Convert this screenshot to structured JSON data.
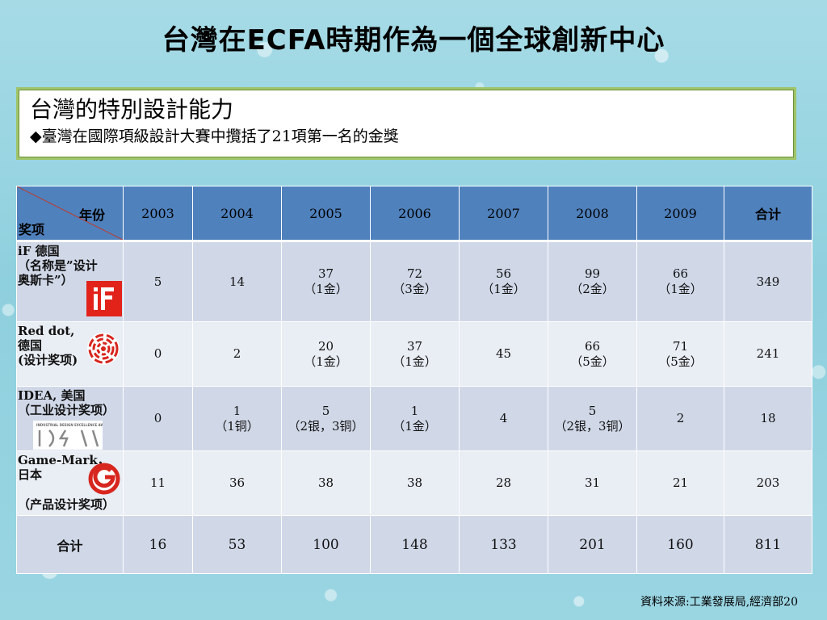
{
  "slide": {
    "title": "台灣在ECFA時期作為一個全球創新中心",
    "heading": "台灣的特別設計能力",
    "bullet": "◆臺灣在國際項級設計大賽中攬括了21項第一名的金獎",
    "footer": "資料來源:工業發展局,經濟部20"
  },
  "table": {
    "corner_year": "年份",
    "corner_award": "奖项",
    "columns": [
      "2003",
      "2004",
      "2005",
      "2006",
      "2007",
      "2008",
      "2009",
      "合计"
    ],
    "rows": [
      {
        "label": "iF 德国\n（名称是”设计\n奥斯卡”）",
        "label_sub": "",
        "logo": "if-logo",
        "cells": [
          [
            "5"
          ],
          [
            "14"
          ],
          [
            "37",
            "（1金）"
          ],
          [
            "72",
            "（3金）"
          ],
          [
            "56",
            "（1金）"
          ],
          [
            "99",
            "（2金）"
          ],
          [
            "66",
            "（1金）"
          ],
          [
            "349"
          ]
        ]
      },
      {
        "label": "Red dot,\n德国\n(设计奖项)",
        "label_sub": "",
        "logo": "red-dot-logo",
        "cells": [
          [
            "0"
          ],
          [
            "2"
          ],
          [
            "20",
            "（1金）"
          ],
          [
            "37",
            "（1金）"
          ],
          [
            "45"
          ],
          [
            "66",
            "（5金）"
          ],
          [
            "71",
            "（5金）"
          ],
          [
            "241"
          ]
        ]
      },
      {
        "label": "IDEA, 美国\n（工业设计奖项）",
        "label_sub": "",
        "logo": "idea-logo",
        "cells": [
          [
            "0"
          ],
          [
            "1",
            "（1铜）"
          ],
          [
            "5",
            "（2银，3铜）"
          ],
          [
            "1",
            "（1金）"
          ],
          [
            "4"
          ],
          [
            "5",
            "（2银，3铜）"
          ],
          [
            "2"
          ],
          [
            "18"
          ]
        ]
      },
      {
        "label": "Game-Mark，\n日本",
        "label_sub": "（产品设计奖项）",
        "logo": "g-mark-logo",
        "cells": [
          [
            "11"
          ],
          [
            "36"
          ],
          [
            "38"
          ],
          [
            "38"
          ],
          [
            "28"
          ],
          [
            "31"
          ],
          [
            "21"
          ],
          [
            "203"
          ]
        ]
      }
    ],
    "total_label": "合计",
    "totals": [
      "16",
      "53",
      "100",
      "148",
      "133",
      "201",
      "160",
      "811"
    ]
  },
  "colors": {
    "header_blue": "#4f81bd",
    "row_dark": "#d0d8e8",
    "row_light": "#e9edf4",
    "box_border": "#9fc46a"
  }
}
